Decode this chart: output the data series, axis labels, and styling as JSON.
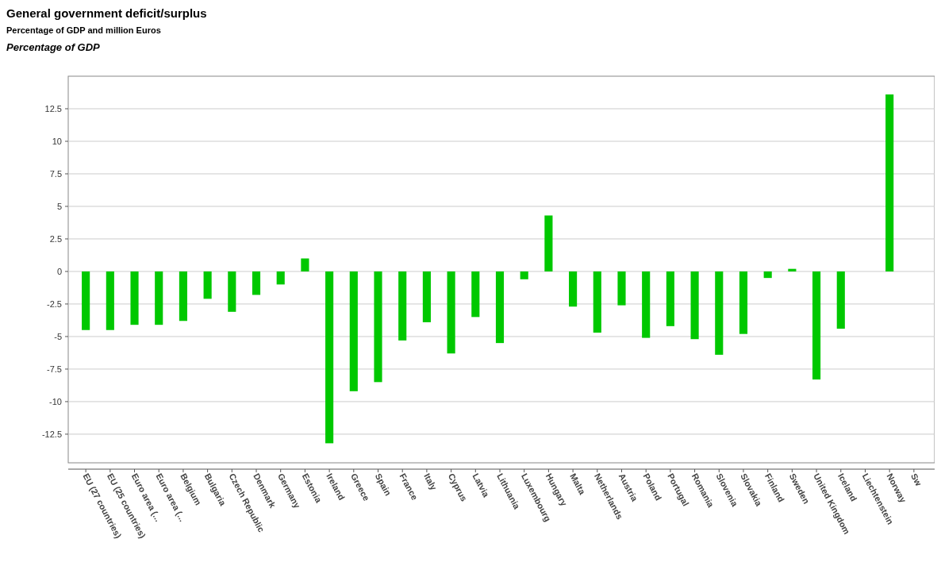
{
  "chart_data": {
    "type": "bar",
    "title": "General government deficit/surplus",
    "subtitle": "Percentage of GDP and million Euros",
    "ylabel": "Percentage of GDP",
    "categories": [
      "EU (27 countries)",
      "EU (25 countries)",
      "Euro area (...",
      "Euro area (...",
      "Belgium",
      "Bulgaria",
      "Czech Republic",
      "Denmark",
      "Germany",
      "Estonia",
      "Ireland",
      "Greece",
      "Spain",
      "France",
      "Italy",
      "Cyprus",
      "Latvia",
      "Lithuania",
      "Luxembourg",
      "Hungary",
      "Malta",
      "Netherlands",
      "Austria",
      "Poland",
      "Portugal",
      "Romania",
      "Slovenia",
      "Slovakia",
      "Finland",
      "Sweden",
      "United Kingdom",
      "Iceland",
      "Liechtenstein",
      "Norway",
      "Sw"
    ],
    "values": [
      -4.5,
      -4.5,
      -4.1,
      -4.1,
      -3.8,
      -2.1,
      -3.1,
      -1.8,
      -1.0,
      1.0,
      -13.2,
      -9.2,
      -8.5,
      -5.3,
      -3.9,
      -6.3,
      -3.5,
      -5.5,
      -0.6,
      4.3,
      -2.7,
      -4.7,
      -2.6,
      -5.1,
      -4.2,
      -5.2,
      -6.4,
      -4.8,
      -0.5,
      0.2,
      -8.3,
      -4.4,
      null,
      13.6,
      null
    ],
    "color": "#00c800",
    "ylim": [
      -14.7,
      15
    ],
    "yticks": [
      -12.5,
      -10,
      -7.5,
      -5,
      -2.5,
      0,
      2.5,
      5,
      7.5,
      10,
      12.5
    ],
    "grid": "y"
  }
}
